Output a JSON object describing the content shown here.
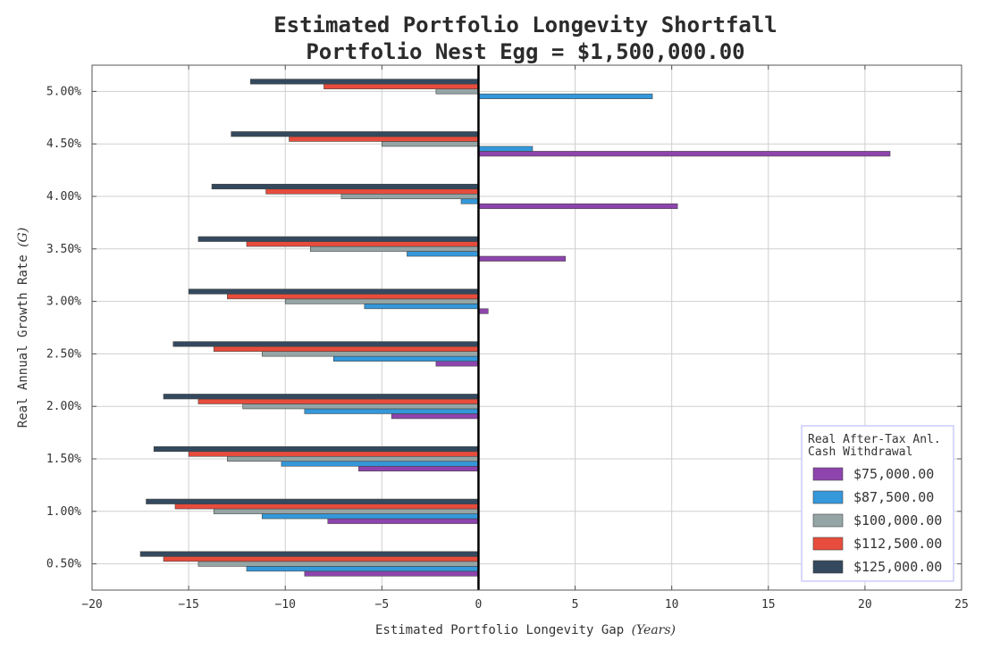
{
  "chart_data": {
    "type": "bar",
    "orientation": "horizontal",
    "title": "Estimated Portfolio Longevity Shortfall",
    "subtitle": "Portfolio Nest Egg = $1,500,000.00",
    "xlabel": "Estimated Portfolio Longevity Gap",
    "xlabel_italic": "(Years)",
    "ylabel": "Real Annual Growth Rate",
    "ylabel_italic": "(G)",
    "xlim": [
      -20,
      25
    ],
    "xticks": [
      -20,
      -15,
      -10,
      -5,
      0,
      5,
      10,
      15,
      20,
      25
    ],
    "xtick_labels": [
      "−20",
      "−15",
      "−10",
      "−5",
      "0",
      "5",
      "10",
      "15",
      "20",
      "25"
    ],
    "categories": [
      "0.50%",
      "1.00%",
      "1.50%",
      "2.00%",
      "2.50%",
      "3.00%",
      "3.50%",
      "4.00%",
      "4.50%",
      "5.00%"
    ],
    "grid": true,
    "legend": {
      "title_line1": "Real After-Tax Anl.",
      "title_line2": "Cash Withdrawal",
      "position": "bottom-right"
    },
    "series": [
      {
        "name": "$75,000.00",
        "color": "#8e44ad",
        "values": [
          -9.0,
          -7.8,
          -6.2,
          -4.5,
          -2.2,
          0.5,
          4.5,
          10.3,
          21.3,
          null
        ]
      },
      {
        "name": "$87,500.00",
        "color": "#3498db",
        "values": [
          -12.0,
          -11.2,
          -10.2,
          -9.0,
          -7.5,
          -5.9,
          -3.7,
          -0.9,
          2.8,
          9.0
        ]
      },
      {
        "name": "$100,000.00",
        "color": "#95a5a6",
        "values": [
          -14.5,
          -13.7,
          -13.0,
          -12.2,
          -11.2,
          -10.0,
          -8.7,
          -7.1,
          -5.0,
          -2.2
        ]
      },
      {
        "name": "$112,500.00",
        "color": "#e74c3c",
        "values": [
          -16.3,
          -15.7,
          -15.0,
          -14.5,
          -13.7,
          -13.0,
          -12.0,
          -11.0,
          -9.8,
          -8.0
        ]
      },
      {
        "name": "$125,000.00",
        "color": "#34495e",
        "values": [
          -17.5,
          -17.2,
          -16.8,
          -16.3,
          -15.8,
          -15.0,
          -14.5,
          -13.8,
          -12.8,
          -11.8
        ]
      }
    ]
  }
}
